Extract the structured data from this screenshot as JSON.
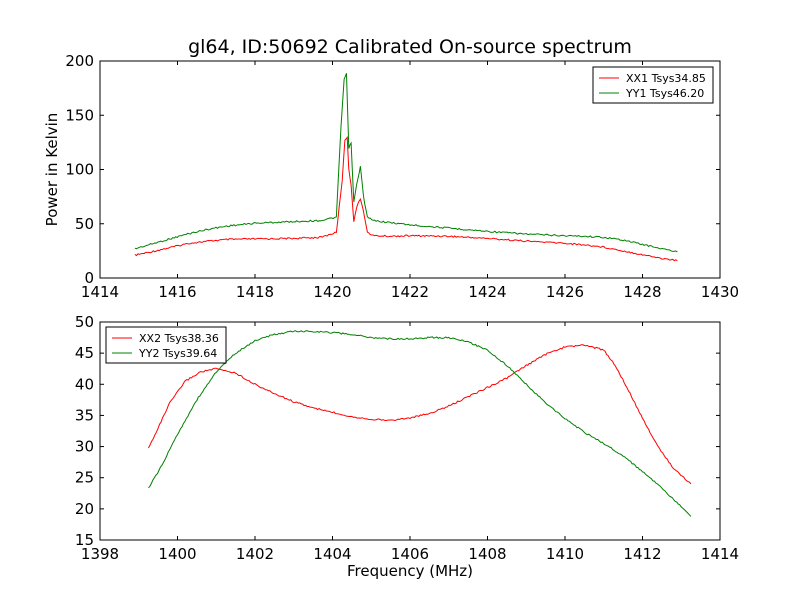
{
  "figure": {
    "title": "gl64, ID:50692 Calibrated On-source spectrum"
  },
  "chart_data": [
    {
      "type": "line",
      "title": "gl64, ID:50692 Calibrated On-source spectrum",
      "xlabel": "",
      "ylabel": "Power in Kelvin",
      "xlim": [
        1414,
        1430
      ],
      "ylim": [
        0,
        200
      ],
      "xticks": [
        1414,
        1416,
        1418,
        1420,
        1422,
        1424,
        1426,
        1428,
        1430
      ],
      "yticks": [
        0,
        50,
        100,
        150,
        200
      ],
      "grid": false,
      "legend_position": "top-right",
      "series": [
        {
          "name": "XX1 Tsys34.85",
          "color": "#ff0000",
          "x": [
            1414.9,
            1415.3,
            1415.8,
            1416.3,
            1416.8,
            1417.3,
            1418,
            1419,
            1419.7,
            1420.1,
            1420.25,
            1420.32,
            1420.38,
            1420.42,
            1420.48,
            1420.55,
            1420.62,
            1420.72,
            1420.8,
            1420.9,
            1421.05,
            1421.5,
            1422,
            1423,
            1424,
            1425,
            1426,
            1426.5,
            1427,
            1427.5,
            1428,
            1428.5,
            1428.9
          ],
          "y": [
            21,
            24,
            28,
            32,
            34,
            35.5,
            36,
            36.5,
            37.5,
            42,
            90,
            127,
            130,
            100,
            86,
            52,
            65,
            73,
            62,
            42,
            39,
            38.5,
            39,
            38.5,
            36.5,
            34,
            32,
            30.5,
            28.5,
            25,
            21.5,
            18,
            16
          ]
        },
        {
          "name": "YY1 Tsys46.20",
          "color": "#008000",
          "x": [
            1414.9,
            1415.3,
            1415.8,
            1416.3,
            1416.8,
            1417.3,
            1418,
            1419,
            1419.7,
            1420.1,
            1420.22,
            1420.3,
            1420.36,
            1420.42,
            1420.48,
            1420.55,
            1420.62,
            1420.72,
            1420.8,
            1420.9,
            1421.05,
            1421.5,
            1422,
            1423,
            1424,
            1425,
            1426,
            1426.5,
            1427,
            1427.5,
            1428,
            1428.5,
            1428.9
          ],
          "y": [
            27,
            31,
            36,
            41,
            45,
            48,
            50.5,
            52,
            53,
            56,
            140,
            183,
            188,
            120,
            124,
            70,
            85,
            103,
            75,
            56,
            53,
            51,
            49,
            46,
            43,
            40.5,
            39,
            38.5,
            37.5,
            35,
            31,
            27,
            24
          ]
        }
      ]
    },
    {
      "type": "line",
      "title": "",
      "xlabel": "Frequency (MHz)",
      "ylabel": "",
      "xlim": [
        1398,
        1414
      ],
      "ylim": [
        15,
        50
      ],
      "xticks": [
        1398,
        1400,
        1402,
        1404,
        1406,
        1408,
        1410,
        1412,
        1414
      ],
      "yticks": [
        15,
        20,
        25,
        30,
        35,
        40,
        45,
        50
      ],
      "grid": false,
      "legend_position": "top-left",
      "series": [
        {
          "name": "XX2 Tsys38.36",
          "color": "#ff0000",
          "x": [
            1399.25,
            1399.5,
            1399.8,
            1400.2,
            1400.6,
            1401,
            1401.5,
            1402,
            1402.5,
            1403,
            1403.5,
            1404,
            1404.5,
            1405,
            1405.5,
            1406,
            1406.5,
            1407,
            1407.5,
            1408,
            1408.5,
            1409,
            1409.5,
            1410,
            1410.5,
            1411,
            1411.3,
            1411.6,
            1412,
            1412.4,
            1412.8,
            1413.25
          ],
          "y": [
            29.7,
            33,
            37,
            40.5,
            42,
            42.5,
            41.8,
            40,
            38.5,
            37.2,
            36.2,
            35.5,
            34.8,
            34.4,
            34.2,
            34.6,
            35.3,
            36.5,
            38,
            39.5,
            41,
            43,
            44.8,
            46,
            46.3,
            45.5,
            43,
            39.5,
            34.5,
            30,
            26.5,
            24
          ]
        },
        {
          "name": "YY2 Tsys39.64",
          "color": "#008000",
          "x": [
            1399.25,
            1399.6,
            1400,
            1400.5,
            1401,
            1401.5,
            1402,
            1402.5,
            1403,
            1403.5,
            1404,
            1404.5,
            1405,
            1405.5,
            1406,
            1406.5,
            1407,
            1407.5,
            1408,
            1408.5,
            1409,
            1409.5,
            1410,
            1410.5,
            1411,
            1411.5,
            1412,
            1412.5,
            1413,
            1413.25
          ],
          "y": [
            23.3,
            27,
            32,
            37.5,
            42,
            45,
            47,
            48,
            48.5,
            48.5,
            48.3,
            48,
            47.5,
            47.3,
            47.3,
            47.5,
            47.5,
            46.8,
            45.5,
            43,
            40,
            37,
            34.5,
            32.3,
            30.5,
            28.5,
            26,
            23.3,
            20.3,
            18.8
          ]
        }
      ]
    }
  ]
}
